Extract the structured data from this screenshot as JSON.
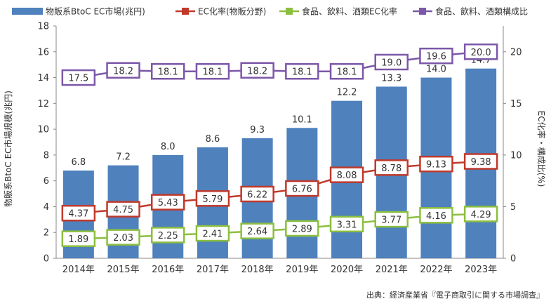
{
  "chart_data": {
    "type": "bar",
    "categories": [
      "2014年",
      "2015年",
      "2016年",
      "2017年",
      "2018年",
      "2019年",
      "2020年",
      "2021年",
      "2022年",
      "2023年"
    ],
    "series": [
      {
        "name": "物販系BtoC EC市場(兆円)",
        "type": "bar",
        "axis": "left",
        "color": "#4f81bd",
        "values": [
          6.8,
          7.2,
          8.0,
          8.6,
          9.3,
          10.1,
          12.2,
          13.3,
          14.0,
          14.7
        ],
        "labels": [
          "6.8",
          "7.2",
          "8.0",
          "8.6",
          "9.3",
          "10.1",
          "12.2",
          "13.3",
          "14.0",
          "14.7"
        ]
      },
      {
        "name": "EC化率(物販分野)",
        "type": "line",
        "axis": "right",
        "color": "#c0392b",
        "values": [
          4.37,
          4.75,
          5.43,
          5.79,
          6.22,
          6.76,
          8.08,
          8.78,
          9.13,
          9.38
        ],
        "labels": [
          "4.37",
          "4.75",
          "5.43",
          "5.79",
          "6.22",
          "6.76",
          "8.08",
          "8.78",
          "9.13",
          "9.38"
        ]
      },
      {
        "name": "食品、飲料、酒類EC化率",
        "type": "line",
        "axis": "right",
        "color": "#8cbf3f",
        "values": [
          1.89,
          2.03,
          2.25,
          2.41,
          2.64,
          2.89,
          3.31,
          3.77,
          4.16,
          4.29
        ],
        "labels": [
          "1.89",
          "2.03",
          "2.25",
          "2.41",
          "2.64",
          "2.89",
          "3.31",
          "3.77",
          "4.16",
          "4.29"
        ]
      },
      {
        "name": "食品、飲料、酒類構成比",
        "type": "line",
        "axis": "right",
        "color": "#7b58a8",
        "values": [
          17.5,
          18.2,
          18.1,
          18.1,
          18.2,
          18.1,
          18.1,
          19.0,
          19.6,
          20.0
        ],
        "labels": [
          "17.5",
          "18.2",
          "18.1",
          "18.1",
          "18.2",
          "18.1",
          "18.1",
          "19.0",
          "19.6",
          "20.0"
        ]
      }
    ],
    "ylabel_left": "物販系BtoC EC市場規模(兆円)",
    "ylabel_right": "EC化率・構成比(%)",
    "ylim_left": [
      0,
      18
    ],
    "yticks_left": [
      "0",
      "2",
      "4",
      "6",
      "8",
      "10",
      "12",
      "14",
      "16",
      "18"
    ],
    "ylim_right": [
      0,
      22.5
    ],
    "yticks_right": [
      "0",
      "5",
      "10",
      "15",
      "20"
    ],
    "legend_position": "top",
    "grid": false
  },
  "source": "出典：経済産業省『電子商取引に関する市場調査』"
}
